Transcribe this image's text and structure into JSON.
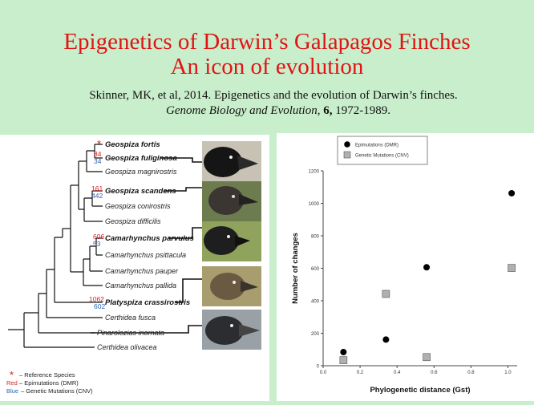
{
  "slide": {
    "title_line1": "Epigenetics of Darwin’s Galapagos Finches",
    "title_line2": "An icon of evolution",
    "citation_line1": "Skinner, MK, et al, 2014. Epigenetics and the evolution of Darwin’s finches.",
    "citation_journal": "Genome Biology and Evolution,",
    "citation_volume": "6,",
    "citation_pages": "1972-1989."
  },
  "tree": {
    "species": [
      {
        "name": "Geospiza fortis",
        "bold": true
      },
      {
        "name": "Geospiza fuliginosa",
        "bold": true
      },
      {
        "name": "Geospiza magnirostris",
        "bold": false
      },
      {
        "name": "Geospiza scandens",
        "bold": true
      },
      {
        "name": "Geospiza conirostris",
        "bold": false
      },
      {
        "name": "Geospiza difficilis",
        "bold": false
      },
      {
        "name": "Camarhynchus parvulus",
        "bold": true
      },
      {
        "name": "Camarhynchus psittacula",
        "bold": false
      },
      {
        "name": "Camarhynchus pauper",
        "bold": false
      },
      {
        "name": "Camarhynchus  pallida",
        "bold": false
      },
      {
        "name": "Platyspiza crassirostris",
        "bold": true
      },
      {
        "name": "Certhidea fusca",
        "bold": false
      },
      {
        "name": "Pinarolozias inornata",
        "bold": false
      },
      {
        "name": "Certhidea  olivacea",
        "bold": false
      }
    ],
    "reference_marker": "*",
    "branch_counts": [
      {
        "dmr": "84",
        "cnv": "34"
      },
      {
        "dmr": "161",
        "cnv": "442"
      },
      {
        "dmr": "606",
        "cnv": "53"
      },
      {
        "dmr": "1062",
        "cnv": "602"
      }
    ],
    "legend": {
      "star": "*",
      "reference": "– Reference Species",
      "red_word": "Red",
      "red_text": "– Epimutations (DMR)",
      "blue_word": "Blue",
      "blue_text": "– Genetic Mutations (CNV)"
    },
    "colors": {
      "red": "#d31f1f",
      "blue": "#2b63b5"
    }
  },
  "chart_data": {
    "type": "scatter",
    "title": "",
    "xlabel": "Phylogenetic distance (Gst)",
    "ylabel": "Number of changes",
    "xlim": [
      0.0,
      1.05
    ],
    "ylim": [
      0,
      1200
    ],
    "x_ticks": [
      "0.0",
      "0.2",
      "0.4",
      "0.6",
      "0.8",
      "1.0"
    ],
    "y_ticks": [
      "0",
      "200",
      "400",
      "600",
      "800",
      "1000",
      "1200"
    ],
    "legend_position": "top-left",
    "series": [
      {
        "name": "Epimutations (DMR)",
        "marker": "circle",
        "color": "#000000",
        "points": [
          {
            "x": 0.11,
            "y": 84
          },
          {
            "x": 0.34,
            "y": 161
          },
          {
            "x": 0.56,
            "y": 606
          },
          {
            "x": 1.02,
            "y": 1062
          }
        ]
      },
      {
        "name": "Genetic Mutations (CNV)",
        "marker": "square",
        "color": "#b0b0b0",
        "points": [
          {
            "x": 0.11,
            "y": 34
          },
          {
            "x": 0.34,
            "y": 442
          },
          {
            "x": 0.56,
            "y": 53
          },
          {
            "x": 1.02,
            "y": 602
          }
        ]
      }
    ]
  }
}
